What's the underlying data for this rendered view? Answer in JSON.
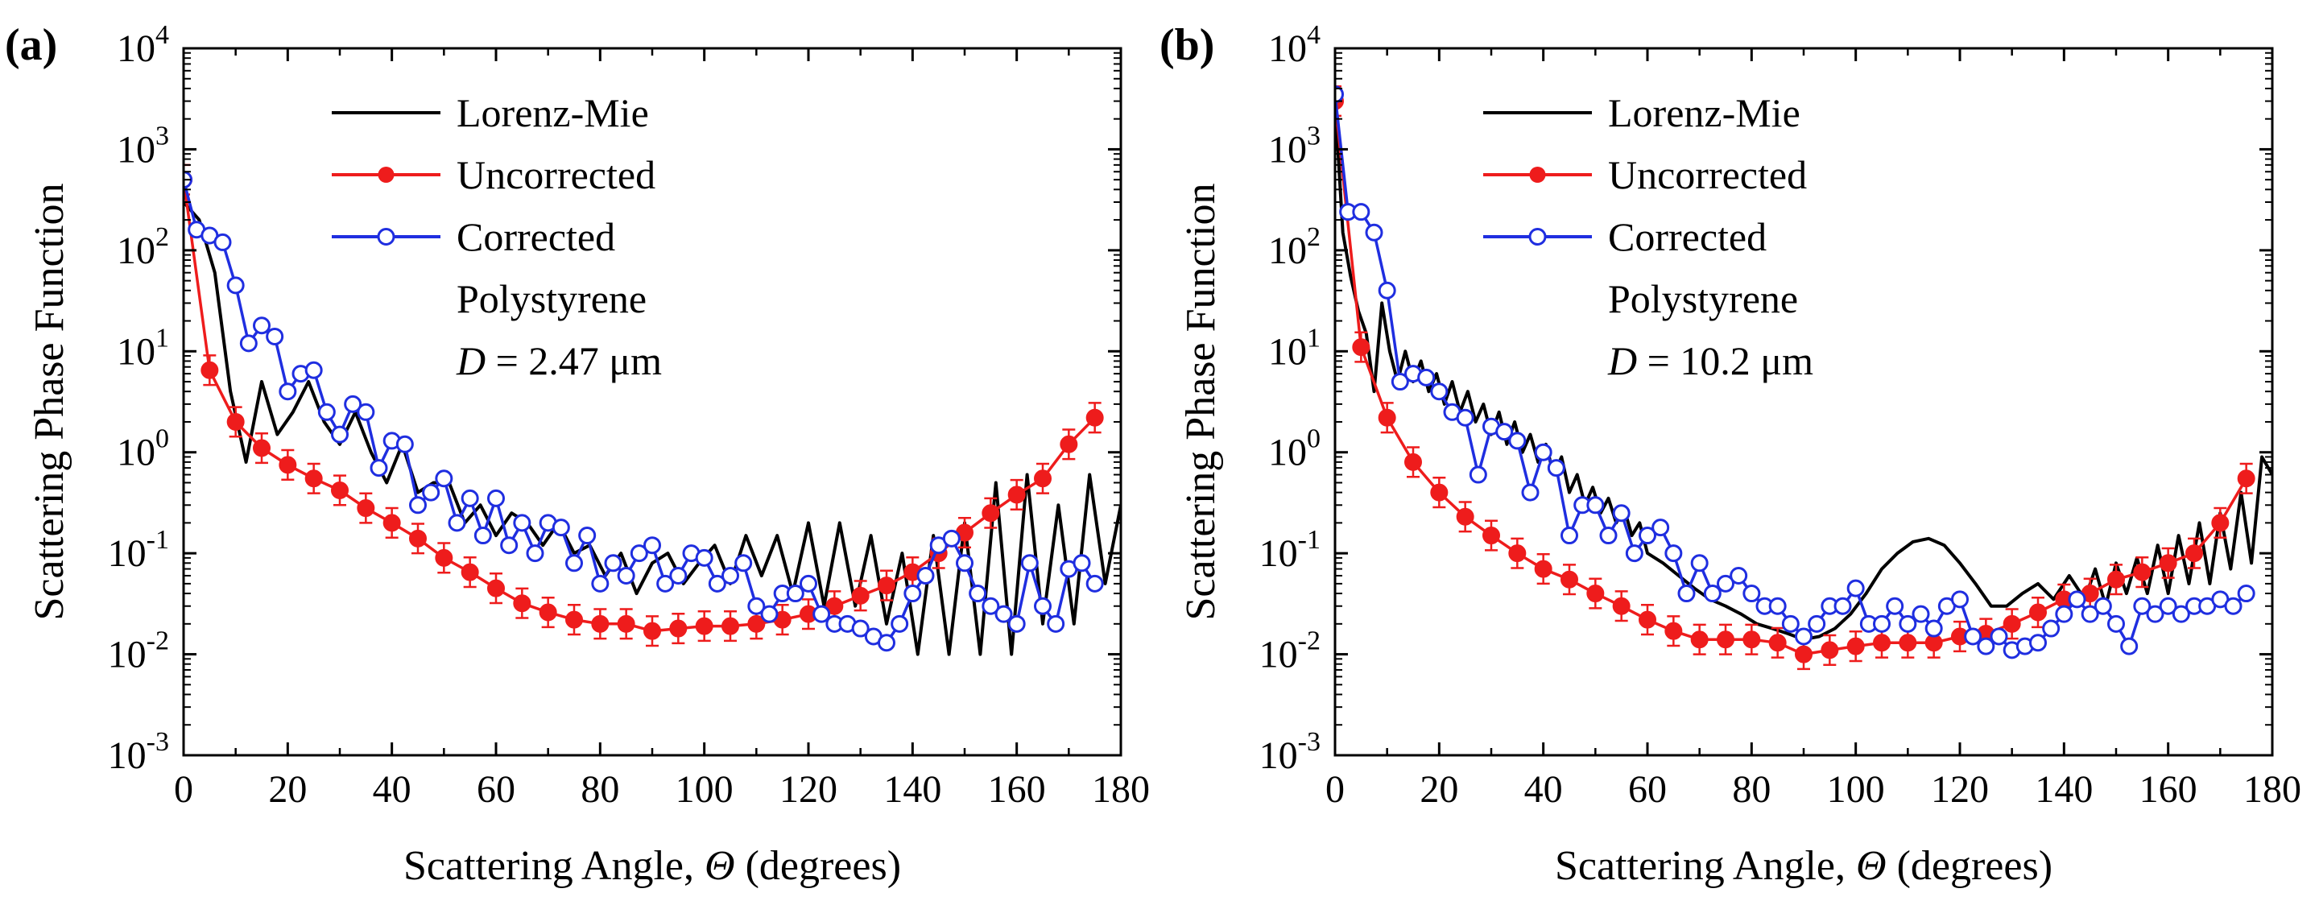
{
  "figure": {
    "panels": [
      "a",
      "b"
    ]
  },
  "colors": {
    "lorenz": "#000000",
    "uncorrected": "#ee1c1c",
    "corrected": "#1f2ee0",
    "axis": "#000000"
  },
  "chart_data": [
    {
      "type": "line",
      "panel_label": "(a)",
      "title": "",
      "xlabel": "Scattering Angle, ",
      "xlabel_symbol": "Θ",
      "xlabel_unit": " (degrees)",
      "ylabel": "Scattering Phase Function",
      "xlim": [
        0,
        180
      ],
      "ylim": [
        0.001,
        10000
      ],
      "yscale": "log",
      "xticks": [
        "0",
        "20",
        "40",
        "60",
        "80",
        "100",
        "120",
        "140",
        "160",
        "180"
      ],
      "yticks": [
        {
          "base": "10",
          "exp": "-3"
        },
        {
          "base": "10",
          "exp": "-2"
        },
        {
          "base": "10",
          "exp": "-1"
        },
        {
          "base": "10",
          "exp": "0"
        },
        {
          "base": "10",
          "exp": "1"
        },
        {
          "base": "10",
          "exp": "2"
        },
        {
          "base": "10",
          "exp": "3"
        },
        {
          "base": "10",
          "exp": "4"
        }
      ],
      "legend": {
        "position": "top-left",
        "entries": [
          "Lorenz-Mie",
          "Uncorrected",
          "Corrected"
        ],
        "sample": "Polystyrene",
        "diameter_symbol": "D",
        "diameter_text": " = 2.47 μm"
      },
      "series": [
        {
          "name": "Lorenz-Mie",
          "style": "line",
          "x": [
            0,
            3,
            6,
            9,
            12,
            15,
            18,
            21,
            24,
            27,
            30,
            33,
            36,
            39,
            42,
            45,
            48,
            51,
            54,
            57,
            60,
            63,
            66,
            69,
            72,
            75,
            78,
            81,
            84,
            87,
            90,
            93,
            96,
            99,
            102,
            105,
            108,
            111,
            114,
            117,
            120,
            123,
            126,
            129,
            132,
            135,
            138,
            141,
            144,
            147,
            150,
            153,
            156,
            159,
            162,
            165,
            168,
            171,
            174,
            177,
            180
          ],
          "y": [
            300,
            200,
            60,
            4,
            0.8,
            5,
            1.5,
            2.5,
            5,
            2,
            1.2,
            2.5,
            1,
            0.5,
            1.2,
            0.4,
            0.5,
            0.5,
            0.2,
            0.3,
            0.15,
            0.25,
            0.2,
            0.12,
            0.2,
            0.1,
            0.12,
            0.06,
            0.1,
            0.04,
            0.08,
            0.1,
            0.05,
            0.08,
            0.12,
            0.05,
            0.15,
            0.06,
            0.15,
            0.04,
            0.2,
            0.03,
            0.2,
            0.03,
            0.15,
            0.02,
            0.1,
            0.01,
            0.15,
            0.01,
            0.2,
            0.01,
            0.5,
            0.01,
            0.6,
            0.02,
            0.3,
            0.02,
            0.6,
            0.05,
            0.3
          ]
        },
        {
          "name": "Uncorrected",
          "style": "filled-markers-errorbars",
          "x": [
            0,
            5,
            10,
            15,
            20,
            25,
            30,
            35,
            40,
            45,
            50,
            55,
            60,
            65,
            70,
            75,
            80,
            85,
            90,
            95,
            100,
            105,
            110,
            115,
            120,
            125,
            130,
            135,
            140,
            145,
            150,
            155,
            160,
            165,
            170,
            175
          ],
          "y": [
            500,
            6.5,
            2,
            1.1,
            0.75,
            0.55,
            0.42,
            0.28,
            0.2,
            0.14,
            0.09,
            0.065,
            0.045,
            0.032,
            0.026,
            0.022,
            0.02,
            0.02,
            0.017,
            0.018,
            0.019,
            0.019,
            0.02,
            0.022,
            0.025,
            0.03,
            0.038,
            0.048,
            0.065,
            0.1,
            0.16,
            0.25,
            0.38,
            0.55,
            1.2,
            2.2
          ]
        },
        {
          "name": "Corrected",
          "style": "open-markers",
          "x": [
            0,
            2.5,
            5,
            7.5,
            10,
            12.5,
            15,
            17.5,
            20,
            22.5,
            25,
            27.5,
            30,
            32.5,
            35,
            37.5,
            40,
            42.5,
            45,
            47.5,
            50,
            52.5,
            55,
            57.5,
            60,
            62.5,
            65,
            67.5,
            70,
            72.5,
            75,
            77.5,
            80,
            82.5,
            85,
            87.5,
            90,
            92.5,
            95,
            97.5,
            100,
            102.5,
            105,
            107.5,
            110,
            112.5,
            115,
            117.5,
            120,
            122.5,
            125,
            127.5,
            130,
            132.5,
            135,
            137.5,
            140,
            142.5,
            145,
            147.5,
            150,
            152.5,
            155,
            157.5,
            160,
            162.5,
            165,
            167.5,
            170,
            172.5,
            175
          ],
          "y": [
            500,
            160,
            140,
            120,
            45,
            12,
            18,
            14,
            4,
            6,
            6.5,
            2.5,
            1.5,
            3,
            2.5,
            0.7,
            1.3,
            1.2,
            0.3,
            0.4,
            0.55,
            0.2,
            0.35,
            0.15,
            0.35,
            0.12,
            0.2,
            0.1,
            0.2,
            0.18,
            0.08,
            0.15,
            0.05,
            0.08,
            0.06,
            0.1,
            0.12,
            0.05,
            0.06,
            0.1,
            0.09,
            0.05,
            0.06,
            0.08,
            0.03,
            0.025,
            0.04,
            0.04,
            0.05,
            0.025,
            0.02,
            0.02,
            0.018,
            0.015,
            0.013,
            0.02,
            0.04,
            0.06,
            0.12,
            0.14,
            0.08,
            0.04,
            0.03,
            0.025,
            0.02,
            0.08,
            0.03,
            0.02,
            0.07,
            0.08,
            0.05
          ]
        }
      ]
    },
    {
      "type": "line",
      "panel_label": "(b)",
      "title": "",
      "xlabel": "Scattering Angle, ",
      "xlabel_symbol": "Θ",
      "xlabel_unit": " (degrees)",
      "ylabel": "Scattering Phase Function",
      "xlim": [
        0,
        180
      ],
      "ylim": [
        0.001,
        10000
      ],
      "yscale": "log",
      "xticks": [
        "0",
        "20",
        "40",
        "60",
        "80",
        "100",
        "120",
        "140",
        "160",
        "180"
      ],
      "yticks": [
        {
          "base": "10",
          "exp": "-3"
        },
        {
          "base": "10",
          "exp": "-2"
        },
        {
          "base": "10",
          "exp": "-1"
        },
        {
          "base": "10",
          "exp": "0"
        },
        {
          "base": "10",
          "exp": "1"
        },
        {
          "base": "10",
          "exp": "2"
        },
        {
          "base": "10",
          "exp": "3"
        },
        {
          "base": "10",
          "exp": "4"
        }
      ],
      "legend": {
        "position": "top-left",
        "entries": [
          "Lorenz-Mie",
          "Uncorrected",
          "Corrected"
        ],
        "sample": "Polystyrene",
        "diameter_symbol": "D",
        "diameter_text": " = 10.2 μm"
      },
      "series": [
        {
          "name": "Lorenz-Mie",
          "style": "line",
          "x": [
            0,
            1.5,
            3,
            4.5,
            6,
            7.5,
            9,
            10.5,
            12,
            13.5,
            15,
            16.5,
            18,
            19.5,
            21,
            22.5,
            24,
            25.5,
            27,
            28.5,
            30,
            31.5,
            33,
            34.5,
            36,
            37.5,
            39,
            40.5,
            42,
            43.5,
            45,
            46.5,
            48,
            49.5,
            51,
            52.5,
            54,
            55.5,
            57,
            58.5,
            60,
            63,
            66,
            69,
            72,
            75,
            78,
            81,
            84,
            87,
            90,
            93,
            96,
            99,
            102,
            105,
            108,
            111,
            114,
            117,
            120,
            123,
            126,
            129,
            132,
            135,
            138,
            141,
            144,
            146,
            148,
            150,
            152,
            154,
            156,
            158,
            160,
            162,
            164,
            166,
            168,
            170,
            172,
            174,
            176,
            178,
            180
          ],
          "y": [
            3000,
            150,
            55,
            25,
            15,
            4,
            30,
            10,
            5,
            10,
            5,
            8,
            4,
            6,
            3,
            5,
            2.5,
            4,
            2,
            3,
            1.5,
            2.5,
            1.2,
            2,
            1,
            1.5,
            0.8,
            1.2,
            0.6,
            0.9,
            0.4,
            0.6,
            0.3,
            0.45,
            0.25,
            0.35,
            0.2,
            0.28,
            0.15,
            0.2,
            0.1,
            0.08,
            0.06,
            0.045,
            0.035,
            0.03,
            0.025,
            0.02,
            0.018,
            0.016,
            0.014,
            0.015,
            0.018,
            0.025,
            0.04,
            0.07,
            0.1,
            0.13,
            0.14,
            0.12,
            0.08,
            0.05,
            0.03,
            0.03,
            0.04,
            0.05,
            0.035,
            0.06,
            0.035,
            0.07,
            0.03,
            0.08,
            0.04,
            0.09,
            0.04,
            0.12,
            0.04,
            0.15,
            0.05,
            0.2,
            0.05,
            0.25,
            0.07,
            0.4,
            0.08,
            0.9,
            0.6
          ]
        },
        {
          "name": "Uncorrected",
          "style": "filled-markers-errorbars",
          "x": [
            0,
            5,
            10,
            15,
            20,
            25,
            30,
            35,
            40,
            45,
            50,
            55,
            60,
            65,
            70,
            75,
            80,
            85,
            90,
            95,
            100,
            105,
            110,
            115,
            120,
            125,
            130,
            135,
            140,
            145,
            150,
            155,
            160,
            165,
            170,
            175
          ],
          "y": [
            3000,
            11,
            2.2,
            0.8,
            0.4,
            0.23,
            0.15,
            0.1,
            0.07,
            0.055,
            0.04,
            0.03,
            0.022,
            0.017,
            0.014,
            0.014,
            0.014,
            0.013,
            0.01,
            0.011,
            0.012,
            0.013,
            0.013,
            0.013,
            0.015,
            0.016,
            0.02,
            0.026,
            0.035,
            0.04,
            0.055,
            0.065,
            0.08,
            0.1,
            0.2,
            0.55
          ]
        },
        {
          "name": "Corrected",
          "style": "open-markers",
          "x": [
            0,
            2.5,
            5,
            7.5,
            10,
            12.5,
            15,
            17.5,
            20,
            22.5,
            25,
            27.5,
            30,
            32.5,
            35,
            37.5,
            40,
            42.5,
            45,
            47.5,
            50,
            52.5,
            55,
            57.5,
            60,
            62.5,
            65,
            67.5,
            70,
            72.5,
            75,
            77.5,
            80,
            82.5,
            85,
            87.5,
            90,
            92.5,
            95,
            97.5,
            100,
            102.5,
            105,
            107.5,
            110,
            112.5,
            115,
            117.5,
            120,
            122.5,
            125,
            127.5,
            130,
            132.5,
            135,
            137.5,
            140,
            142.5,
            145,
            147.5,
            150,
            152.5,
            155,
            157.5,
            160,
            162.5,
            165,
            167.5,
            170,
            172.5,
            175
          ],
          "y": [
            3500,
            240,
            240,
            150,
            40,
            5,
            6,
            5.5,
            4,
            2.5,
            2.2,
            0.6,
            1.8,
            1.6,
            1.3,
            0.4,
            1,
            0.7,
            0.15,
            0.3,
            0.3,
            0.15,
            0.25,
            0.1,
            0.15,
            0.18,
            0.1,
            0.04,
            0.08,
            0.04,
            0.05,
            0.06,
            0.04,
            0.03,
            0.03,
            0.02,
            0.015,
            0.02,
            0.03,
            0.03,
            0.045,
            0.02,
            0.02,
            0.03,
            0.02,
            0.025,
            0.018,
            0.03,
            0.035,
            0.015,
            0.012,
            0.015,
            0.011,
            0.012,
            0.013,
            0.018,
            0.025,
            0.035,
            0.025,
            0.03,
            0.02,
            0.012,
            0.03,
            0.025,
            0.03,
            0.025,
            0.03,
            0.03,
            0.035,
            0.03,
            0.04
          ]
        }
      ]
    }
  ]
}
